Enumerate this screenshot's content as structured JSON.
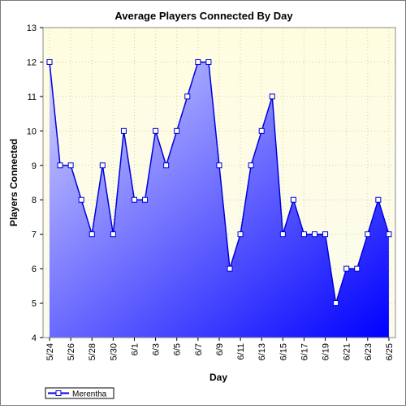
{
  "chart_data": {
    "type": "area",
    "title": "Average Players Connected By Day",
    "xlabel": "Day",
    "ylabel": "Players Connected",
    "ylim": [
      4,
      13
    ],
    "yticks": [
      4,
      5,
      6,
      7,
      8,
      9,
      10,
      11,
      12,
      13
    ],
    "grid": true,
    "legend_position": "bottom-left",
    "categories": [
      "5/24",
      "5/25",
      "5/26",
      "5/27",
      "5/28",
      "5/29",
      "5/30",
      "5/31",
      "6/1",
      "6/2",
      "6/3",
      "6/4",
      "6/5",
      "6/6",
      "6/7",
      "6/8",
      "6/9",
      "6/10",
      "6/11",
      "6/12",
      "6/13",
      "6/14",
      "6/15",
      "6/16",
      "6/17",
      "6/18",
      "6/19",
      "6/20",
      "6/21",
      "6/22",
      "6/23",
      "6/24",
      "6/25"
    ],
    "x_tick_labels": [
      "5/24",
      "5/26",
      "5/28",
      "5/30",
      "6/1",
      "6/3",
      "6/5",
      "6/7",
      "6/9",
      "6/11",
      "6/13",
      "6/15",
      "6/17",
      "6/19",
      "6/21",
      "6/23",
      "6/25"
    ],
    "series": [
      {
        "name": "Merentha",
        "values": [
          12,
          9,
          9,
          8,
          7,
          9,
          7,
          10,
          8,
          8,
          10,
          9,
          10,
          11,
          12,
          12,
          9,
          6,
          7,
          9,
          10,
          11,
          7,
          8,
          7,
          7,
          7,
          5,
          6,
          6,
          7,
          8,
          7
        ]
      }
    ],
    "colors": {
      "plot_background_top": "#fffde0",
      "plot_background_bottom": "#fbfbee",
      "line": "#0000dd",
      "fill_light": "#d4d4ff",
      "fill_dark": "#0000ff",
      "grid": "#d2d2a8",
      "marker_fill": "#ffffff"
    }
  }
}
